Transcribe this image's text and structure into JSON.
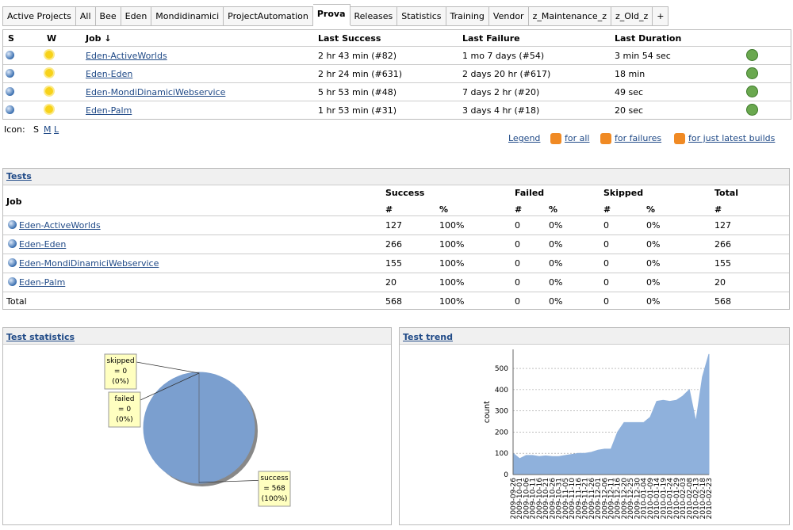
{
  "tabs": [
    "Active Projects",
    "All",
    "Bee",
    "Eden",
    "Mondidinamici",
    "ProjectAutomation",
    "Prova",
    "Releases",
    "Statistics",
    "Training",
    "Vendor",
    "z_Maintenance_z",
    "z_Old_z",
    "+"
  ],
  "selected_tab": 6,
  "jobs_table": {
    "headers": [
      "S",
      "W",
      "Job ↓",
      "Last Success",
      "Last Failure",
      "Last Duration"
    ],
    "rows": [
      [
        "Eden-ActiveWorlds",
        "2 hr 43 min (#82)",
        "1 mo 7 days (#54)",
        "3 min 54 sec"
      ],
      [
        "Eden-Eden",
        "2 hr 24 min (#631)",
        "2 days 20 hr (#617)",
        "18 min"
      ],
      [
        "Eden-MondiDinamiciWebservice",
        "5 hr 53 min (#48)",
        "7 days 2 hr (#20)",
        "49 sec"
      ],
      [
        "Eden-Palm",
        "1 hr 53 min (#31)",
        "3 days 4 hr (#18)",
        "20 sec"
      ]
    ]
  },
  "icon_size": {
    "label": "Icon:",
    "sizes": [
      "S",
      "M",
      "L"
    ]
  },
  "feed_links": {
    "legend": "Legend",
    "feeds": [
      "for all",
      "for failures",
      "for just latest builds"
    ]
  },
  "tests": {
    "title": "Tests",
    "group_headers": [
      "Job",
      "Success",
      "Failed",
      "Skipped",
      "Total"
    ],
    "sub_headers": [
      "#",
      "%",
      "#",
      "%",
      "#",
      "%",
      "#"
    ],
    "rows": [
      [
        "Eden-ActiveWorlds",
        127,
        "100%",
        0,
        "0%",
        0,
        "0%",
        127
      ],
      [
        "Eden-Eden",
        266,
        "100%",
        0,
        "0%",
        0,
        "0%",
        266
      ],
      [
        "Eden-MondiDinamiciWebservice",
        155,
        "100%",
        0,
        "0%",
        0,
        "0%",
        155
      ],
      [
        "Eden-Palm",
        20,
        "100%",
        0,
        "0%",
        0,
        "0%",
        20
      ]
    ],
    "total_row": [
      "Total",
      568,
      "100%",
      0,
      "0%",
      0,
      "0%",
      568
    ]
  },
  "chart_data": [
    {
      "type": "pie",
      "title": "Test statistics",
      "categories": [
        "skipped",
        "failed",
        "success"
      ],
      "values": [
        0,
        0,
        568
      ],
      "value_labels": [
        "= 0",
        "= 0",
        "= 568"
      ],
      "percent_labels": [
        "(0%)",
        "(0%)",
        "(100%)"
      ],
      "colors": [
        "#fcaf3e",
        "#ef2929",
        "#7b9fcf"
      ]
    },
    {
      "type": "area",
      "title": "Test trend",
      "y_label": "count",
      "categories": [
        "2009-09-26",
        "2009-10-01",
        "2009-10-06",
        "2009-10-11",
        "2009-10-16",
        "2009-10-21",
        "2009-10-26",
        "2009-10-31",
        "2009-11-05",
        "2009-11-10",
        "2009-11-16",
        "2009-11-21",
        "2009-11-26",
        "2009-12-01",
        "2009-12-06",
        "2009-12-11",
        "2009-12-16",
        "2009-12-20",
        "2009-12-25",
        "2009-12-30",
        "2010-01-04",
        "2010-01-09",
        "2010-01-14",
        "2010-01-19",
        "2010-01-24",
        "2010-01-29",
        "2010-02-03",
        "2010-02-08",
        "2010-02-13",
        "2010-02-18",
        "2010-02-23"
      ],
      "values": [
        100,
        75,
        90,
        90,
        85,
        88,
        85,
        85,
        90,
        95,
        100,
        100,
        105,
        115,
        120,
        120,
        200,
        245,
        245,
        245,
        245,
        270,
        345,
        350,
        345,
        350,
        370,
        400,
        250,
        460,
        568
      ],
      "color": "#8fb1dc",
      "ylim": [
        0,
        590
      ],
      "yticks": [
        0,
        100,
        200,
        300,
        400,
        500
      ],
      "grid": true
    }
  ]
}
